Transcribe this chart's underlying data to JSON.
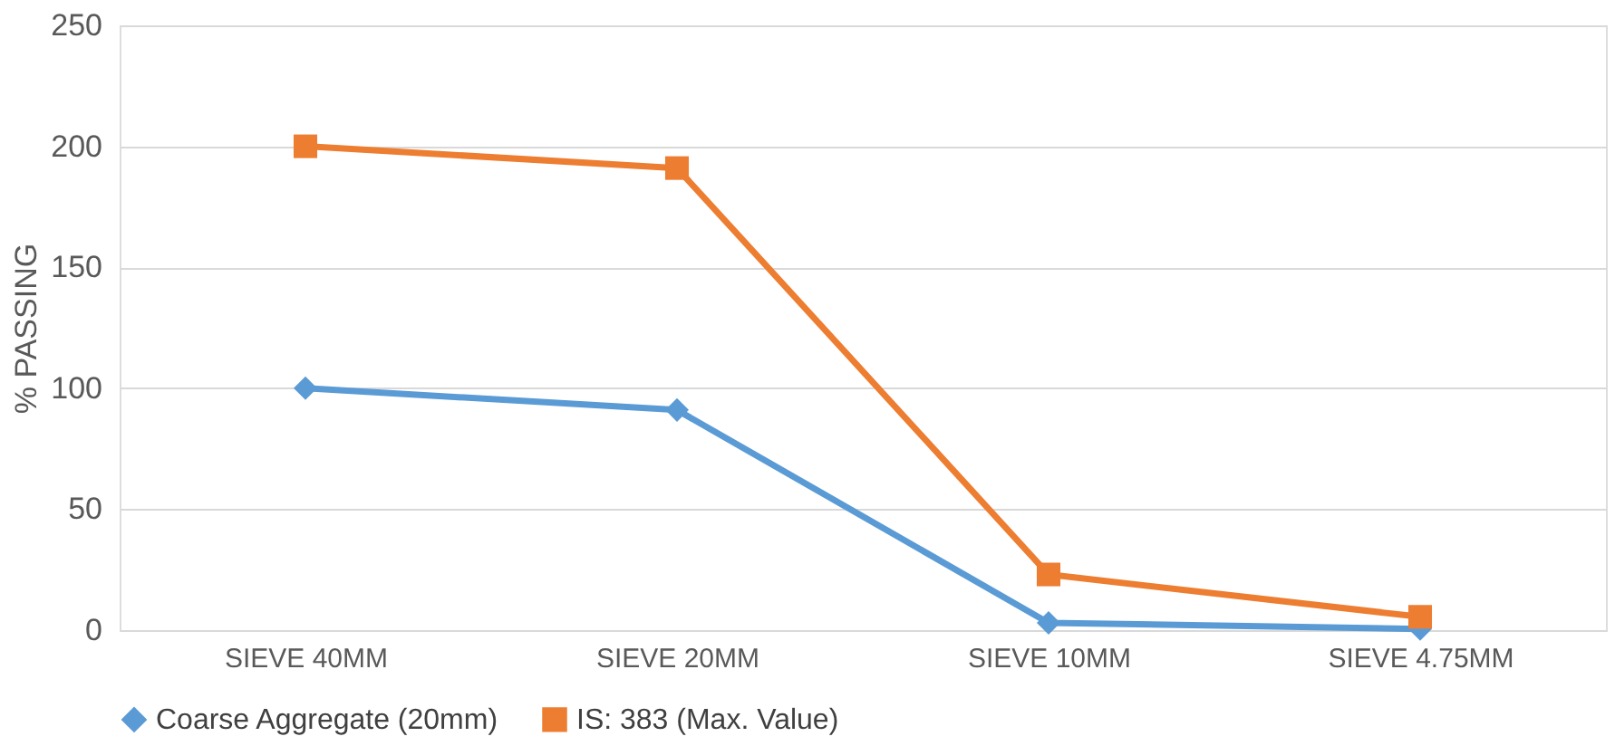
{
  "chart_data": {
    "type": "line",
    "ylabel": "% PASSING",
    "categories": [
      "SIEVE 40MM",
      "SIEVE 20MM",
      "SIEVE 10MM",
      "SIEVE 4.75MM"
    ],
    "series": [
      {
        "name": "Coarse Aggregate (20mm)",
        "color": "#5b9bd5",
        "marker": "diamond",
        "values": [
          100,
          91,
          3,
          0.5
        ]
      },
      {
        "name": "IS: 383 (Max. Value)",
        "color": "#ed7d31",
        "marker": "square",
        "values": [
          200,
          191,
          23,
          5.5
        ]
      }
    ],
    "ylim": [
      0,
      250
    ],
    "yticks": [
      0,
      50,
      100,
      150,
      200,
      250
    ],
    "grid": "y",
    "legend": "bottom"
  }
}
